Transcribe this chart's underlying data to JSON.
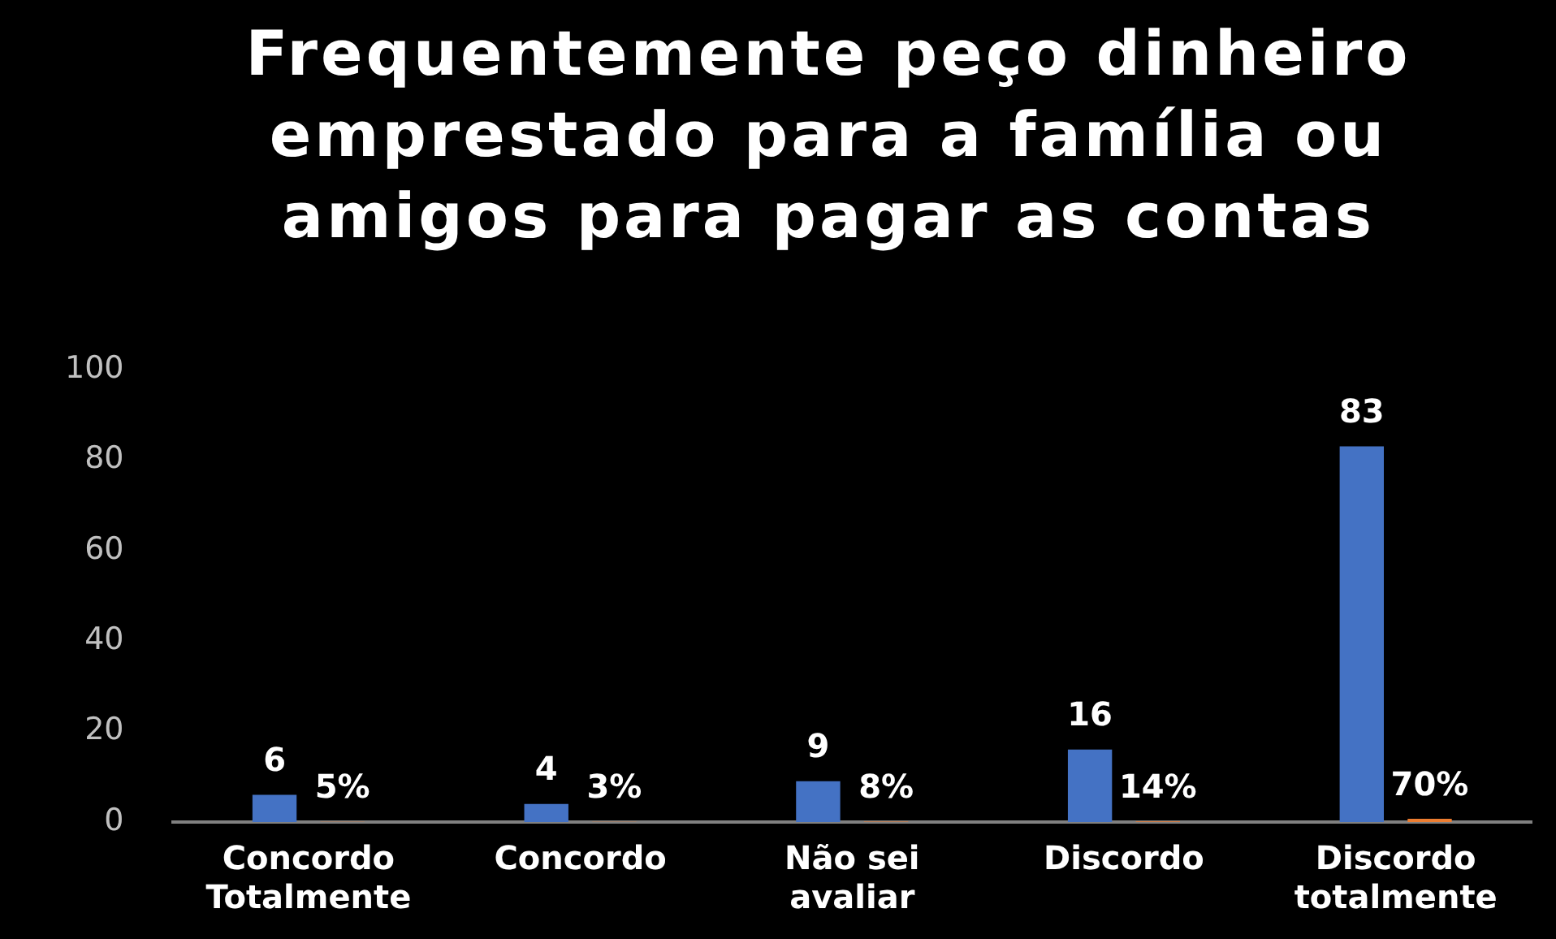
{
  "chart_data": {
    "type": "bar",
    "title": "Frequentemente peço dinheiro emprestado para a família ou amigos para pagar as contas",
    "categories": [
      "Concordo Totalmente",
      "Concordo",
      "Não sei avaliar",
      "Discordo",
      "Discordo totalmente"
    ],
    "series": [
      {
        "color": "#4472c4",
        "values": [
          6,
          4,
          9,
          16,
          83
        ],
        "value_labels": [
          "6",
          "4",
          "9",
          "16",
          "83"
        ]
      },
      {
        "color": "#ed7d31",
        "values": [
          0.05,
          0.03,
          0.08,
          0.14,
          0.7
        ],
        "value_labels": [
          "5%",
          "3%",
          "8%",
          "14%",
          "70%"
        ]
      }
    ],
    "ylim": [
      0,
      100
    ],
    "yticks": [
      0,
      20,
      40,
      60,
      80,
      100
    ],
    "grid": false,
    "legend": false
  }
}
